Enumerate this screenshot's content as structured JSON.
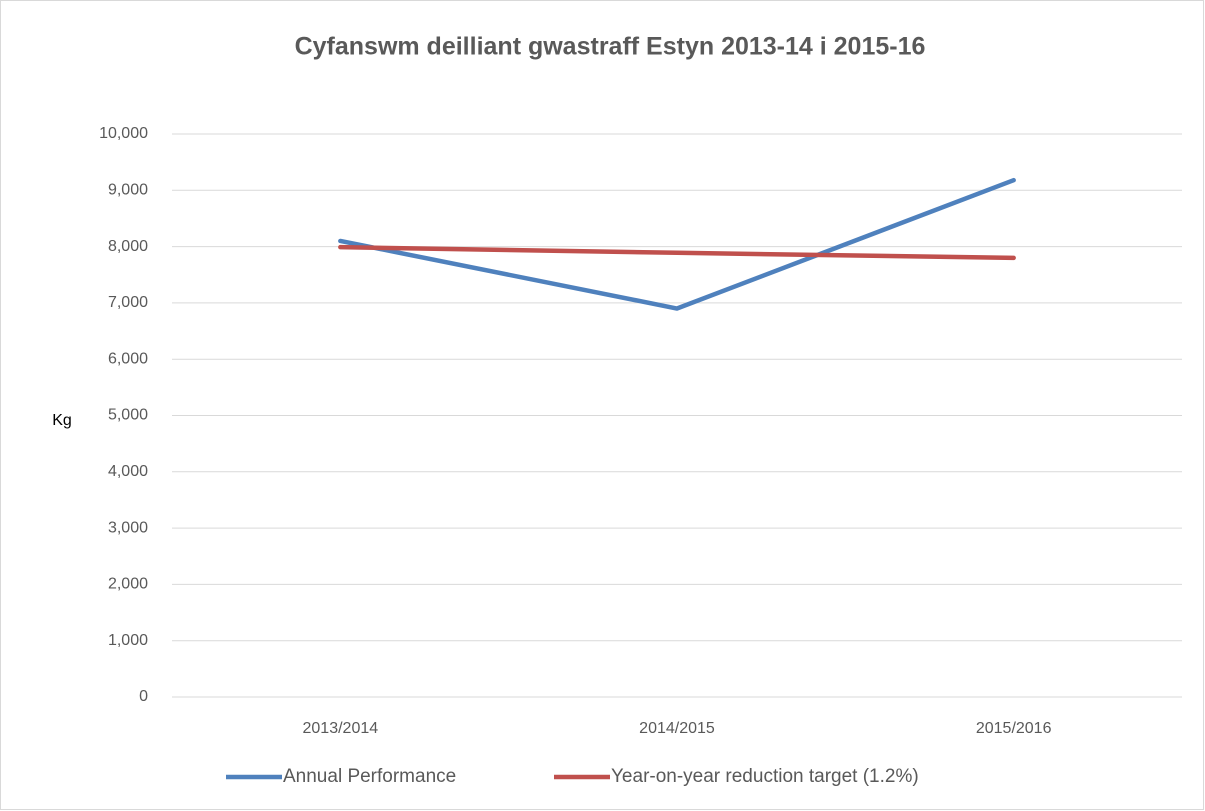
{
  "chart_data": {
    "type": "line",
    "title": "Cyfanswm deilliant gwastraff Estyn 2013-14 i 2015-16",
    "y_label": "Kg",
    "categories": [
      "2013/2014",
      "2014/2015",
      "2015/2016"
    ],
    "series": [
      {
        "name": "Annual Performance",
        "color": "#4f81bd",
        "values": [
          8100,
          6900,
          9180
        ]
      },
      {
        "name": "Year-on-year reduction target (1.2%)",
        "color": "#c0504d",
        "values": [
          7990,
          7890,
          7800
        ]
      }
    ],
    "ylim": [
      0,
      10000
    ],
    "yticks": [
      0,
      {
        "value": 1000,
        "label": "1,000"
      },
      {
        "value": 2000,
        "label": "2,000"
      },
      {
        "value": 3000,
        "label": "3,000"
      },
      {
        "value": 4000,
        "label": "4,000"
      },
      {
        "value": 5000,
        "label": "5,000"
      },
      {
        "value": 6000,
        "label": "6,000"
      },
      {
        "value": 7000,
        "label": "7,000"
      },
      {
        "value": 8000,
        "label": "8,000"
      },
      {
        "value": 9000,
        "label": "9,000"
      },
      {
        "value": 10000,
        "label": "10,000"
      }
    ],
    "grid": true,
    "legend": "bottom"
  }
}
